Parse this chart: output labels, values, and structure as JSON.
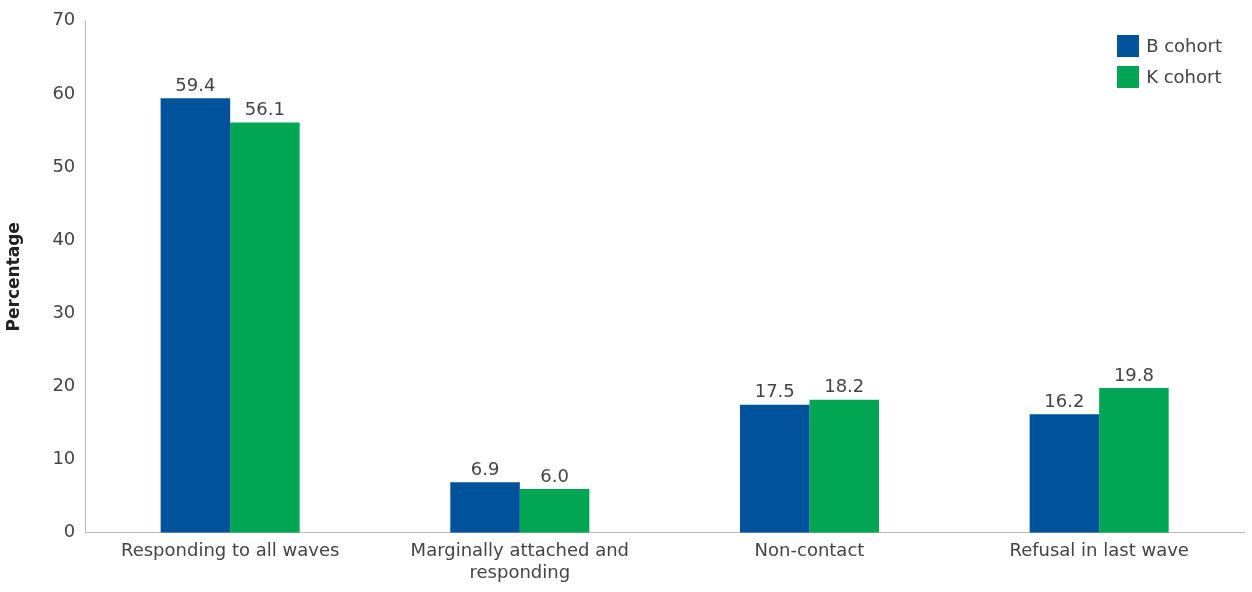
{
  "chart_data": {
    "type": "bar",
    "ylabel": "Percentage",
    "categories": [
      "Responding to all waves",
      "Marginally attached and responding",
      "Non-contact",
      "Refusal in last wave"
    ],
    "series": [
      {
        "name": "B cohort",
        "color": "#00529b",
        "values": [
          59.4,
          6.9,
          17.5,
          16.2
        ],
        "value_labels": [
          "59.4",
          "6.9",
          "17.5",
          "16.2"
        ]
      },
      {
        "name": "K cohort",
        "color": "#00a651",
        "values": [
          56.1,
          6.0,
          18.2,
          19.8
        ],
        "value_labels": [
          "56.1",
          "6.0",
          "18.2",
          "19.8"
        ]
      }
    ],
    "ylim": [
      0,
      70
    ],
    "yticks": [
      0,
      10,
      20,
      30,
      40,
      50,
      60,
      70
    ],
    "grid": false,
    "legend": "top right"
  }
}
